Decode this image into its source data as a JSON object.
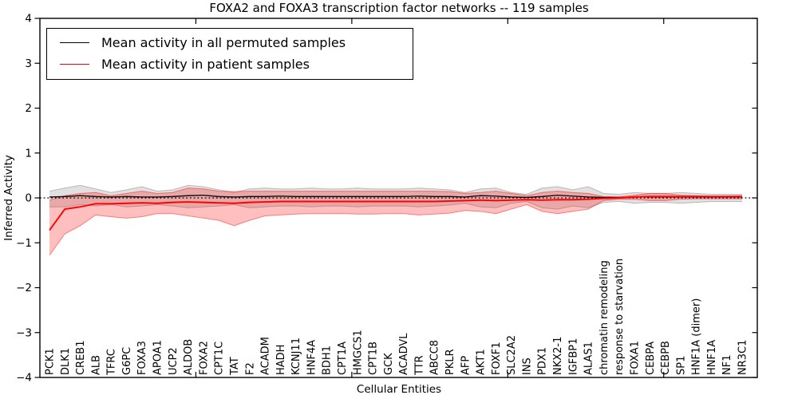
{
  "legend": {
    "items": [
      {
        "label": "Mean activity in all permuted samples",
        "color": "#000000"
      },
      {
        "label": "Mean activity in patient samples",
        "color": "#ff0000"
      }
    ]
  },
  "chart_data": {
    "type": "line",
    "title": "FOXA2 and FOXA3 transcription factor networks -- 119 samples",
    "xlabel": "Cellular Entities",
    "ylabel": "Inferred Activity",
    "ylim": [
      -4,
      4
    ],
    "yticks": [
      -4,
      -3,
      -2,
      -1,
      0,
      1,
      2,
      3,
      4
    ],
    "xlim": [
      0,
      46
    ],
    "xticks": [
      10,
      20,
      30,
      40
    ],
    "grid": false,
    "legend_position": "upper left",
    "zero_reference_line": 0,
    "categories": [
      "PCK1",
      "DLK1",
      "CREB1",
      "ALB",
      "TFRC",
      "G6PC",
      "FOXA3",
      "APOA1",
      "UCP2",
      "ALDOB",
      "FOXA2",
      "CPT1C",
      "TAT",
      "F2",
      "ACADM",
      "HADH",
      "KCNJ11",
      "HNF4A",
      "BDH1",
      "CPT1A",
      "HMGCS1",
      "CPT1B",
      "GCK",
      "ACADVL",
      "TTR",
      "ABCC8",
      "PKLR",
      "AFP",
      "AKT1",
      "FOXF1",
      "SLC2A2",
      "INS",
      "PDX1",
      "NKX2-1",
      "IGFBP1",
      "ALAS1",
      "chromatin remodeling",
      "response to starvation",
      "FOXA1",
      "CEBPA",
      "CEBPB",
      "SP1",
      "HNF1A (dimer)",
      "HNF1A",
      "NF1",
      "NR3C1"
    ],
    "series": [
      {
        "name": "Mean activity in all permuted samples",
        "color": "#000000",
        "line_width": 1.3,
        "values": [
          0.02,
          0.03,
          0.05,
          0.03,
          0.02,
          0.03,
          0.02,
          0.02,
          0.03,
          0.05,
          0.06,
          0.03,
          0.02,
          0.03,
          0.03,
          0.04,
          0.03,
          0.03,
          0.03,
          0.03,
          0.03,
          0.03,
          0.03,
          0.03,
          0.04,
          0.03,
          0.03,
          0.02,
          0.05,
          0.04,
          0.02,
          0.01,
          0.03,
          0.06,
          0.04,
          0.02,
          0.01,
          0.01,
          0.02,
          0.02,
          0.02,
          0.02,
          0.02,
          0.02,
          0.02,
          0.02
        ],
        "band": {
          "upper": [
            0.15,
            0.22,
            0.28,
            0.2,
            0.12,
            0.18,
            0.25,
            0.15,
            0.18,
            0.28,
            0.25,
            0.18,
            0.12,
            0.2,
            0.22,
            0.2,
            0.2,
            0.22,
            0.2,
            0.2,
            0.22,
            0.2,
            0.2,
            0.2,
            0.22,
            0.2,
            0.18,
            0.12,
            0.2,
            0.22,
            0.12,
            0.08,
            0.22,
            0.25,
            0.18,
            0.25,
            0.1,
            0.08,
            0.12,
            0.1,
            0.1,
            0.12,
            0.1,
            0.08,
            0.08,
            0.08
          ],
          "lower": [
            -0.2,
            -0.2,
            -0.15,
            -0.18,
            -0.15,
            -0.2,
            -0.18,
            -0.15,
            -0.18,
            -0.22,
            -0.2,
            -0.18,
            -0.15,
            -0.22,
            -0.2,
            -0.18,
            -0.18,
            -0.2,
            -0.18,
            -0.18,
            -0.2,
            -0.18,
            -0.18,
            -0.18,
            -0.2,
            -0.18,
            -0.16,
            -0.12,
            -0.2,
            -0.22,
            -0.12,
            -0.08,
            -0.22,
            -0.25,
            -0.18,
            -0.22,
            -0.1,
            -0.08,
            -0.12,
            -0.1,
            -0.1,
            -0.12,
            -0.1,
            -0.08,
            -0.08,
            -0.08
          ],
          "fill": "rgba(130,130,130,0.25)",
          "edge": "rgba(120,120,120,0.45)"
        }
      },
      {
        "name": "Mean activity in patient samples",
        "color": "#ff0000",
        "line_width": 1.9,
        "values": [
          -0.72,
          -0.25,
          -0.2,
          -0.13,
          -0.13,
          -0.12,
          -0.11,
          -0.12,
          -0.1,
          -0.09,
          -0.1,
          -0.11,
          -0.12,
          -0.1,
          -0.09,
          -0.08,
          -0.08,
          -0.08,
          -0.08,
          -0.08,
          -0.08,
          -0.08,
          -0.08,
          -0.08,
          -0.08,
          -0.08,
          -0.07,
          -0.06,
          -0.05,
          -0.06,
          -0.05,
          -0.04,
          -0.05,
          -0.04,
          -0.04,
          -0.03,
          -0.01,
          0.0,
          0.02,
          0.03,
          0.03,
          0.03,
          0.03,
          0.03,
          0.03,
          0.03
        ],
        "band": {
          "upper": [
            -0.05,
            0.05,
            0.1,
            0.12,
            0.05,
            0.1,
            0.15,
            0.1,
            0.12,
            0.22,
            0.2,
            0.15,
            0.14,
            0.15,
            0.15,
            0.15,
            0.15,
            0.15,
            0.15,
            0.15,
            0.15,
            0.15,
            0.15,
            0.15,
            0.15,
            0.15,
            0.14,
            0.1,
            0.12,
            0.15,
            0.1,
            0.05,
            0.12,
            0.15,
            0.12,
            0.1,
            0.03,
            0.02,
            0.06,
            0.1,
            0.1,
            0.06,
            0.05,
            0.04,
            0.04,
            0.05
          ],
          "lower": [
            -1.28,
            -0.8,
            -0.62,
            -0.38,
            -0.42,
            -0.45,
            -0.42,
            -0.35,
            -0.35,
            -0.4,
            -0.45,
            -0.5,
            -0.62,
            -0.5,
            -0.4,
            -0.38,
            -0.36,
            -0.35,
            -0.35,
            -0.35,
            -0.36,
            -0.36,
            -0.35,
            -0.35,
            -0.38,
            -0.36,
            -0.34,
            -0.28,
            -0.3,
            -0.35,
            -0.25,
            -0.15,
            -0.3,
            -0.35,
            -0.3,
            -0.25,
            -0.06,
            -0.03,
            -0.03,
            -0.06,
            -0.06,
            -0.03,
            -0.02,
            -0.02,
            -0.02,
            -0.02
          ],
          "fill": "rgba(255,0,0,0.25)",
          "edge": "rgba(255,0,0,0.45)"
        }
      }
    ]
  }
}
